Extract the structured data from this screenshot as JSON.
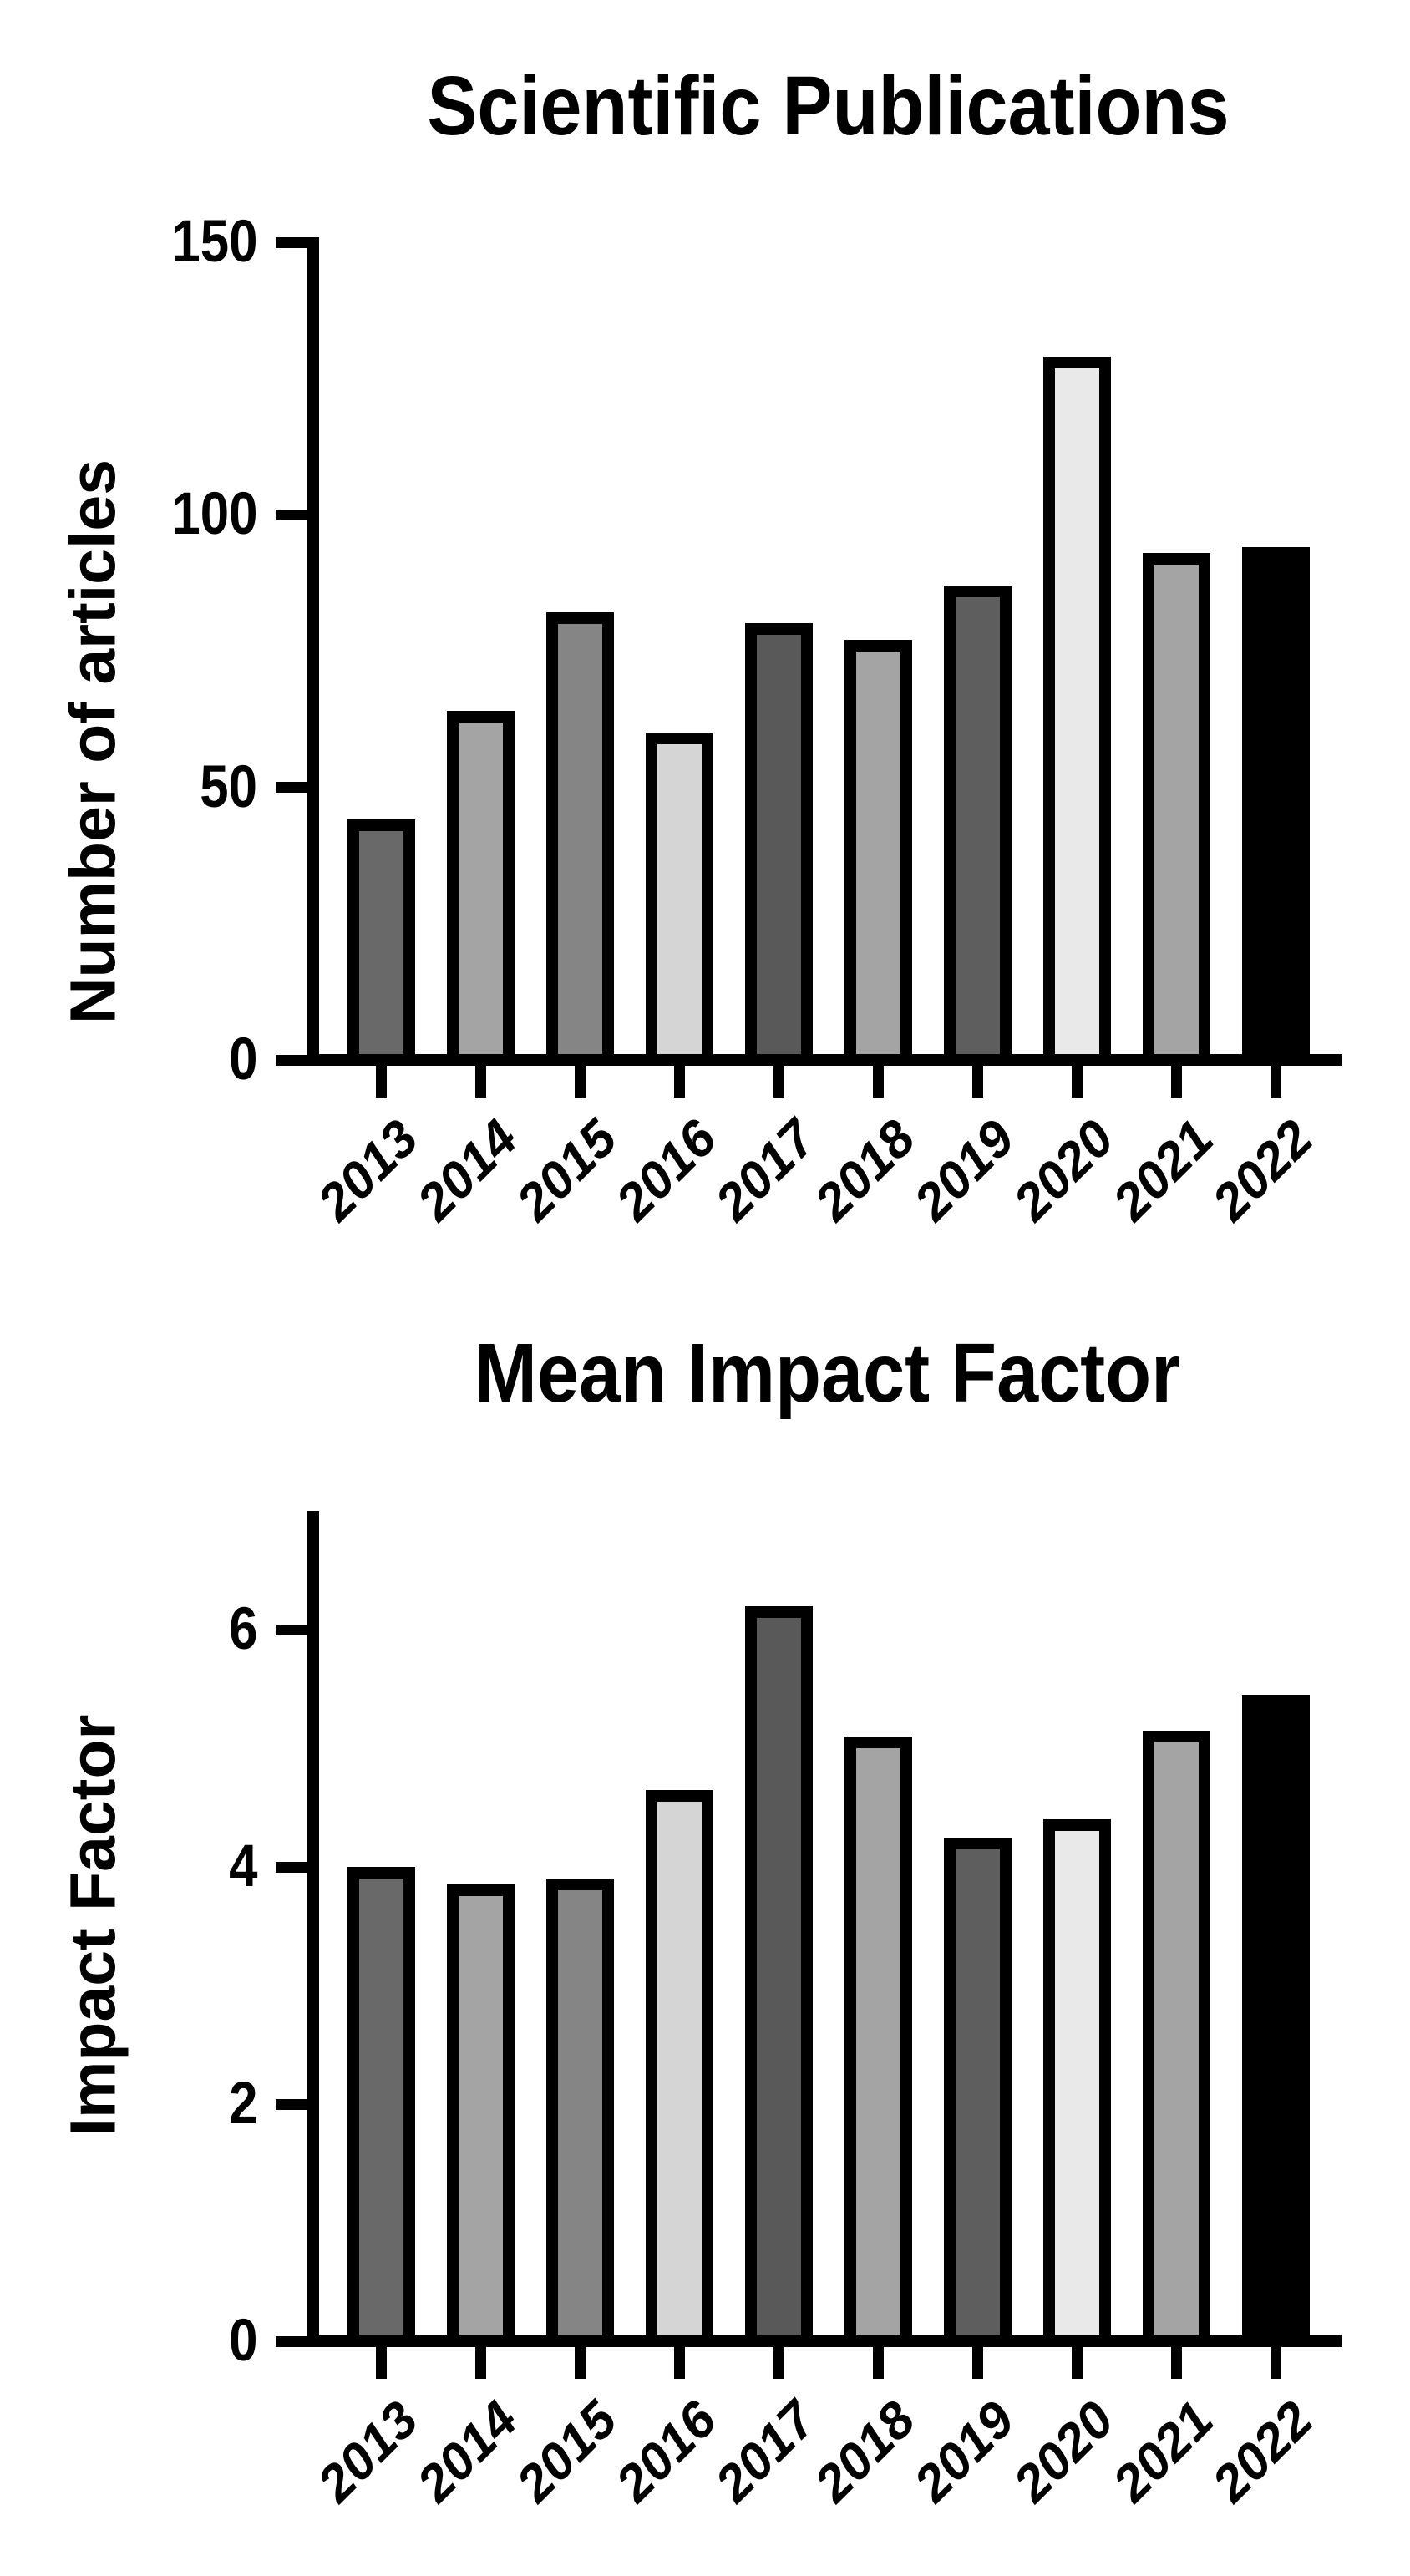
{
  "figure": {
    "background_color": "#ffffff",
    "text_color": "#000000"
  },
  "chart_data": [
    {
      "type": "bar",
      "title": "Scientific Publications",
      "ylabel": "Number of articles",
      "xlabel": "",
      "categories": [
        "2013",
        "2014",
        "2015",
        "2016",
        "2017",
        "2018",
        "2019",
        "2020",
        "2021",
        "2022"
      ],
      "values": [
        43,
        63,
        81,
        59,
        79,
        76,
        86,
        128,
        92,
        93
      ],
      "yticks": [
        0,
        50,
        100,
        150
      ],
      "ylim": [
        0,
        150
      ],
      "grid": false,
      "legend": null,
      "x_tick_label_angle_deg": -45,
      "axis_color": "#000000",
      "bar_outline_color": "#000000",
      "bar_fill_colors": [
        "#696969",
        "#a4a4a4",
        "#858585",
        "#d5d5d5",
        "#595959",
        "#a4a4a4",
        "#5e5e5e",
        "#e9e9e9",
        "#a4a4a4",
        "#000000"
      ]
    },
    {
      "type": "bar",
      "title": "Mean Impact Factor",
      "ylabel": "Impact Factor",
      "xlabel": "",
      "categories": [
        "2013",
        "2014",
        "2015",
        "2016",
        "2017",
        "2018",
        "2019",
        "2020",
        "2021",
        "2022"
      ],
      "values": [
        3.95,
        3.8,
        3.85,
        4.6,
        6.15,
        5.05,
        4.2,
        4.35,
        5.1,
        5.4
      ],
      "yticks": [
        0,
        2,
        4,
        6
      ],
      "ylim": [
        0,
        7
      ],
      "grid": false,
      "legend": null,
      "x_tick_label_angle_deg": -45,
      "axis_color": "#000000",
      "bar_outline_color": "#000000",
      "bar_fill_colors": [
        "#696969",
        "#a4a4a4",
        "#858585",
        "#d5d5d5",
        "#595959",
        "#a4a4a4",
        "#5e5e5e",
        "#e9e9e9",
        "#a4a4a4",
        "#000000"
      ]
    }
  ]
}
